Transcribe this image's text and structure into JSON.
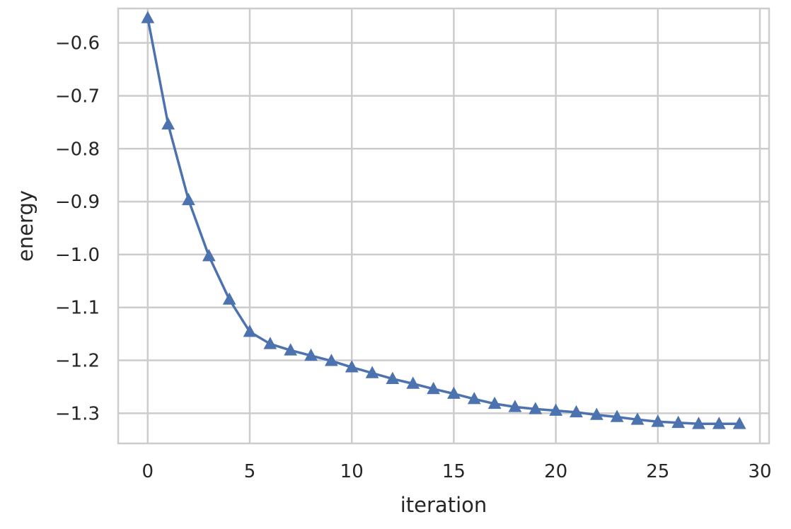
{
  "chart_data": {
    "type": "line",
    "title": "",
    "xlabel": "iteration",
    "ylabel": "energy",
    "xlim": [
      -1.45,
      30.45
    ],
    "ylim": [
      -1.357,
      -0.535
    ],
    "x_ticks": [
      0,
      5,
      10,
      15,
      20,
      25,
      30
    ],
    "y_ticks": [
      -0.6,
      -0.7,
      -0.8,
      -0.9,
      -1.0,
      -1.1,
      -1.2,
      -1.3
    ],
    "x_tick_labels": [
      "0",
      "5",
      "10",
      "15",
      "20",
      "25",
      "30"
    ],
    "y_tick_labels": [
      "−0.6",
      "−0.7",
      "−0.8",
      "−0.9",
      "−1.0",
      "−1.1",
      "−1.2",
      "−1.3"
    ],
    "grid": true,
    "legend": "none",
    "marker": "triangle-up",
    "color": "#4c72b0",
    "grid_color": "#cccccc",
    "series": [
      {
        "x": [
          0,
          1,
          2,
          3,
          4,
          5,
          6,
          7,
          8,
          9,
          10,
          11,
          12,
          13,
          14,
          15,
          16,
          17,
          18,
          19,
          20,
          21,
          22,
          23,
          24,
          25,
          26,
          27,
          28,
          29
        ],
        "values": [
          -0.553,
          -0.754,
          -0.897,
          -1.003,
          -1.085,
          -1.146,
          -1.169,
          -1.181,
          -1.191,
          -1.201,
          -1.213,
          -1.224,
          -1.235,
          -1.244,
          -1.254,
          -1.263,
          -1.273,
          -1.282,
          -1.288,
          -1.292,
          -1.295,
          -1.298,
          -1.303,
          -1.307,
          -1.312,
          -1.316,
          -1.318,
          -1.32,
          -1.32,
          -1.32
        ]
      }
    ]
  }
}
